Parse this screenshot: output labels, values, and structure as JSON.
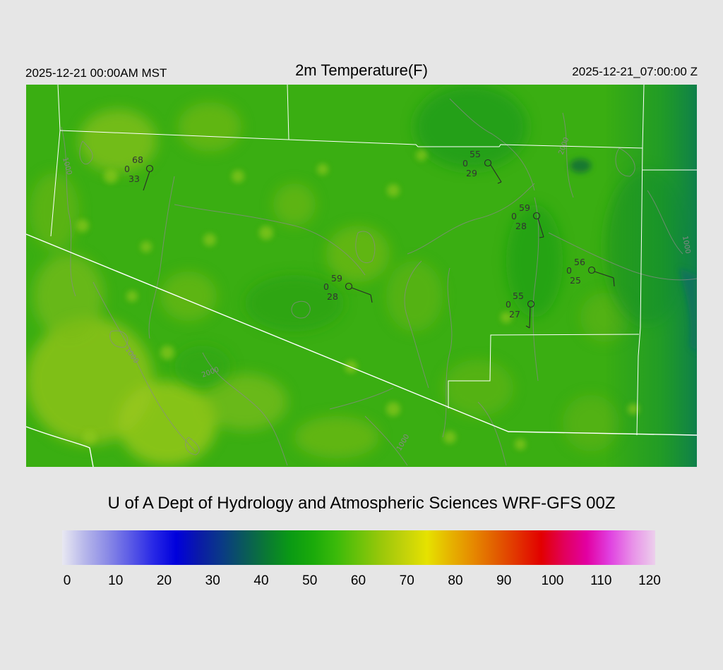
{
  "header": {
    "left_time": "2025-12-21 00:00AM MST",
    "title": "2m Temperature(F)",
    "right_time": "2025-12-21_07:00:00 Z"
  },
  "credit": "U of A Dept of Hydrology and Atmospheric Sciences WRF-GFS 00Z",
  "colorbar": {
    "ticks": [
      "0",
      "10",
      "20",
      "30",
      "40",
      "50",
      "60",
      "70",
      "80",
      "90",
      "100",
      "110",
      "120"
    ],
    "colors": [
      "#e8e8f2",
      "#b6b6ea",
      "#8a8ae6",
      "#5a5ae6",
      "#2828e6",
      "#0000dc",
      "#0a1aa8",
      "#0a3a86",
      "#0a5a5a",
      "#0a7a32",
      "#0a9a14",
      "#1aaa0a",
      "#3aba0a",
      "#6ac20a",
      "#9ac80a",
      "#c2d20a",
      "#e6e200",
      "#e6b400",
      "#e68a00",
      "#e25e00",
      "#e23000",
      "#e20000",
      "#e2005a",
      "#e200a2",
      "#e040e0",
      "#e890e8",
      "#ecd0ec"
    ]
  },
  "stations": [
    {
      "temp": "68",
      "cloud": "0",
      "dew": "33"
    },
    {
      "temp": "55",
      "cloud": "0",
      "dew": "29"
    },
    {
      "temp": "59",
      "cloud": "0",
      "dew": "28"
    },
    {
      "temp": "56",
      "cloud": "0",
      "dew": "25"
    },
    {
      "temp": "59",
      "cloud": "0",
      "dew": "28"
    },
    {
      "temp": "55",
      "cloud": "0",
      "dew": "27"
    }
  ],
  "contours": [
    {
      "label": "1000"
    },
    {
      "label": "1000"
    },
    {
      "label": "2000"
    },
    {
      "label": "2000"
    },
    {
      "label": "1000"
    },
    {
      "label": "1000"
    }
  ],
  "colors": {
    "background": "#e6e6e6",
    "map_base": "#3aae12",
    "warm_patch": "#9ac81a",
    "cool_patch": "#1a9a1a",
    "cold_channel": "#0a7a4a",
    "borders": "#ffffff",
    "contours": "#8a8a8a"
  }
}
